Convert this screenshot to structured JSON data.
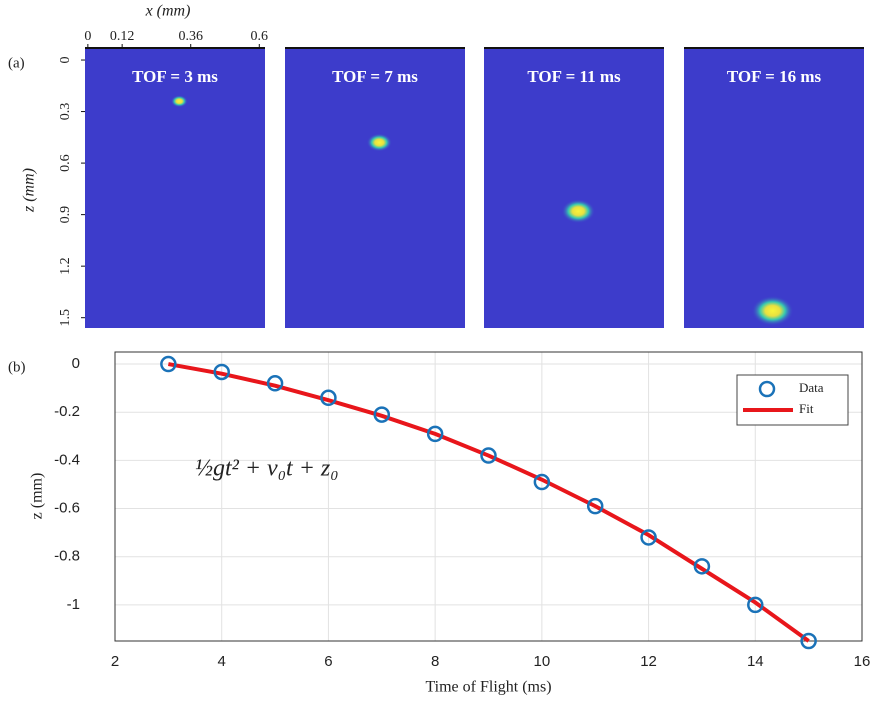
{
  "chart_data": [
    {
      "type": "image",
      "panel_label": "(a)",
      "xlabel": "x (mm)",
      "ylabel": "z (mm)",
      "xlim": [
        -0.01,
        0.62
      ],
      "ylim": [
        -0.07,
        1.56
      ],
      "y_inverted": true,
      "xticks": [
        0,
        0.12,
        0.36,
        0.6
      ],
      "yticks": [
        0,
        0.3,
        0.6,
        0.9,
        1.2,
        1.5
      ],
      "background_color": "#3d3ccb",
      "panels": [
        {
          "title": "TOF = 3 ms",
          "x": 0.32,
          "z": 0.24
        },
        {
          "title": "TOF = 7 ms",
          "x": 0.32,
          "z": 0.48
        },
        {
          "title": "TOF = 11 ms",
          "x": 0.32,
          "z": 0.88
        },
        {
          "title": "TOF = 16 ms",
          "x": 0.3,
          "z": 1.46
        }
      ]
    },
    {
      "type": "line",
      "panel_label": "(b)",
      "xlabel": "Time of Flight (ms)",
      "ylabel": "z (mm)",
      "annotation": "½gt² + v₀t + z₀",
      "x": [
        3,
        4,
        5,
        6,
        7,
        8,
        9,
        10,
        11,
        12,
        13,
        14,
        15
      ],
      "series": [
        {
          "name": "Data",
          "color": "#1a72b8",
          "marker": "circle",
          "values": [
            0,
            -0.033,
            -0.08,
            -0.14,
            -0.21,
            -0.29,
            -0.38,
            -0.49,
            -0.59,
            -0.72,
            -0.84,
            -1.0,
            -1.15
          ]
        },
        {
          "name": "Fit",
          "color": "#e8161b",
          "marker": "line",
          "values": [
            0,
            -0.04,
            -0.09,
            -0.15,
            -0.215,
            -0.29,
            -0.38,
            -0.48,
            -0.59,
            -0.71,
            -0.85,
            -0.99,
            -1.15
          ]
        }
      ],
      "xlim": [
        2,
        16
      ],
      "ylim": [
        -1.15,
        0.05
      ],
      "xticks": [
        2,
        4,
        6,
        8,
        10,
        12,
        14,
        16
      ],
      "yticks": [
        0,
        -0.2,
        -0.4,
        -0.6,
        -0.8,
        -1
      ],
      "grid": true,
      "legend": "northeast"
    }
  ]
}
